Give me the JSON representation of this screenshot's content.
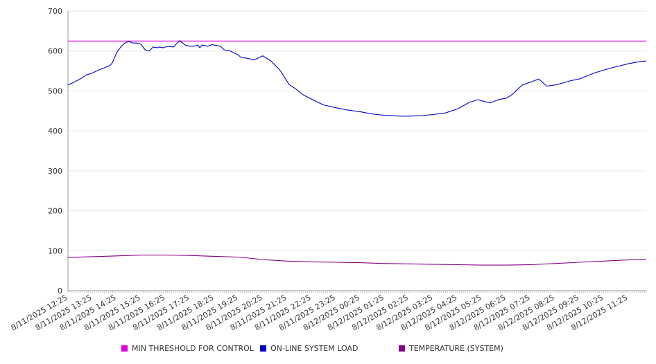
{
  "chart_data": {
    "type": "line",
    "ylim": [
      0,
      700
    ],
    "y_ticks": [
      0,
      100,
      200,
      300,
      400,
      500,
      600,
      700
    ],
    "grid": true,
    "legend_position": "bottom",
    "x_tick_labels": [
      "8/11/2025 12:25",
      "8/11/2025 13:25",
      "8/11/2025 14:25",
      "8/11/2025 15:25",
      "8/11/2025 16:25",
      "8/11/2025 17:25",
      "8/11/2025 18:25",
      "8/11/2025 19:25",
      "8/11/2025 20:25",
      "8/11/2025 21:25",
      "8/11/2025 22:25",
      "8/11/2025 23:25",
      "8/12/2025 00:25",
      "8/12/2025 01:25",
      "8/12/2025 02:25",
      "8/12/2025 03:25",
      "8/12/2025 04:25",
      "8/12/2025 05:25",
      "8/12/2025 06:25",
      "8/12/2025 07:25",
      "8/12/2025 08:25",
      "8/12/2025 09:25",
      "8/12/2025 10:25",
      "8/12/2025 11:25"
    ],
    "x_tick_minutes": [
      0,
      60,
      120,
      180,
      240,
      300,
      360,
      420,
      480,
      540,
      600,
      660,
      720,
      780,
      840,
      900,
      960,
      1020,
      1080,
      1140,
      1200,
      1260,
      1320,
      1380
    ],
    "x_range_minutes": [
      0,
      1425
    ],
    "series": [
      {
        "name": "MIN THRESHOLD FOR CONTROL",
        "color": "#e000e0",
        "x_minutes": [
          0,
          1425
        ],
        "values": [
          625,
          625
        ]
      },
      {
        "name": "ON-LINE SYSTEM LOAD",
        "color": "#0000cc",
        "x_minutes": [
          0,
          15,
          30,
          45,
          60,
          75,
          90,
          105,
          110,
          120,
          125,
          130,
          140,
          150,
          160,
          170,
          180,
          190,
          200,
          210,
          220,
          225,
          235,
          245,
          260,
          275,
          290,
          300,
          310,
          320,
          325,
          330,
          345,
          355,
          365,
          375,
          385,
          400,
          420,
          425,
          430,
          440,
          450,
          460,
          480,
          500,
          520,
          525,
          530,
          545,
          560,
          570,
          580,
          600,
          615,
          630,
          660,
          690,
          720,
          740,
          760,
          780,
          820,
          840,
          870,
          900,
          930,
          960,
          990,
          1010,
          1040,
          1060,
          1080,
          1090,
          1100,
          1110,
          1120,
          1140,
          1160,
          1180,
          1200,
          1220,
          1240,
          1250,
          1260,
          1280,
          1300,
          1320,
          1340,
          1360,
          1380,
          1400,
          1425
        ],
        "values": [
          515,
          522,
          530,
          540,
          545,
          552,
          558,
          565,
          572,
          596,
          603,
          610,
          620,
          624,
          620,
          620,
          617,
          603,
          600,
          610,
          608,
          610,
          608,
          612,
          610,
          626,
          614,
          612,
          612,
          615,
          608,
          615,
          612,
          616,
          614,
          612,
          603,
          600,
          590,
          585,
          583,
          582,
          580,
          578,
          588,
          575,
          555,
          548,
          540,
          516,
          506,
          498,
          490,
          480,
          472,
          465,
          458,
          452,
          448,
          444,
          441,
          439,
          437,
          437,
          438,
          441,
          445,
          455,
          472,
          478,
          470,
          478,
          482,
          488,
          496,
          506,
          515,
          522,
          530,
          512,
          515,
          520,
          526,
          528,
          530,
          538,
          546,
          552,
          558,
          563,
          568,
          572,
          575
        ]
      },
      {
        "name": "TEMPERATURE (SYSTEM)",
        "color": "#880088",
        "x_minutes": [
          0,
          60,
          120,
          180,
          240,
          300,
          360,
          420,
          480,
          540,
          600,
          660,
          720,
          780,
          840,
          900,
          960,
          1020,
          1080,
          1140,
          1200,
          1260,
          1320,
          1380,
          1425
        ],
        "values": [
          83,
          85,
          87,
          89,
          89,
          88,
          86,
          84,
          78,
          74,
          72,
          71,
          70,
          68,
          67,
          66,
          65,
          64,
          64,
          65,
          68,
          71,
          74,
          77,
          79
        ]
      }
    ]
  }
}
